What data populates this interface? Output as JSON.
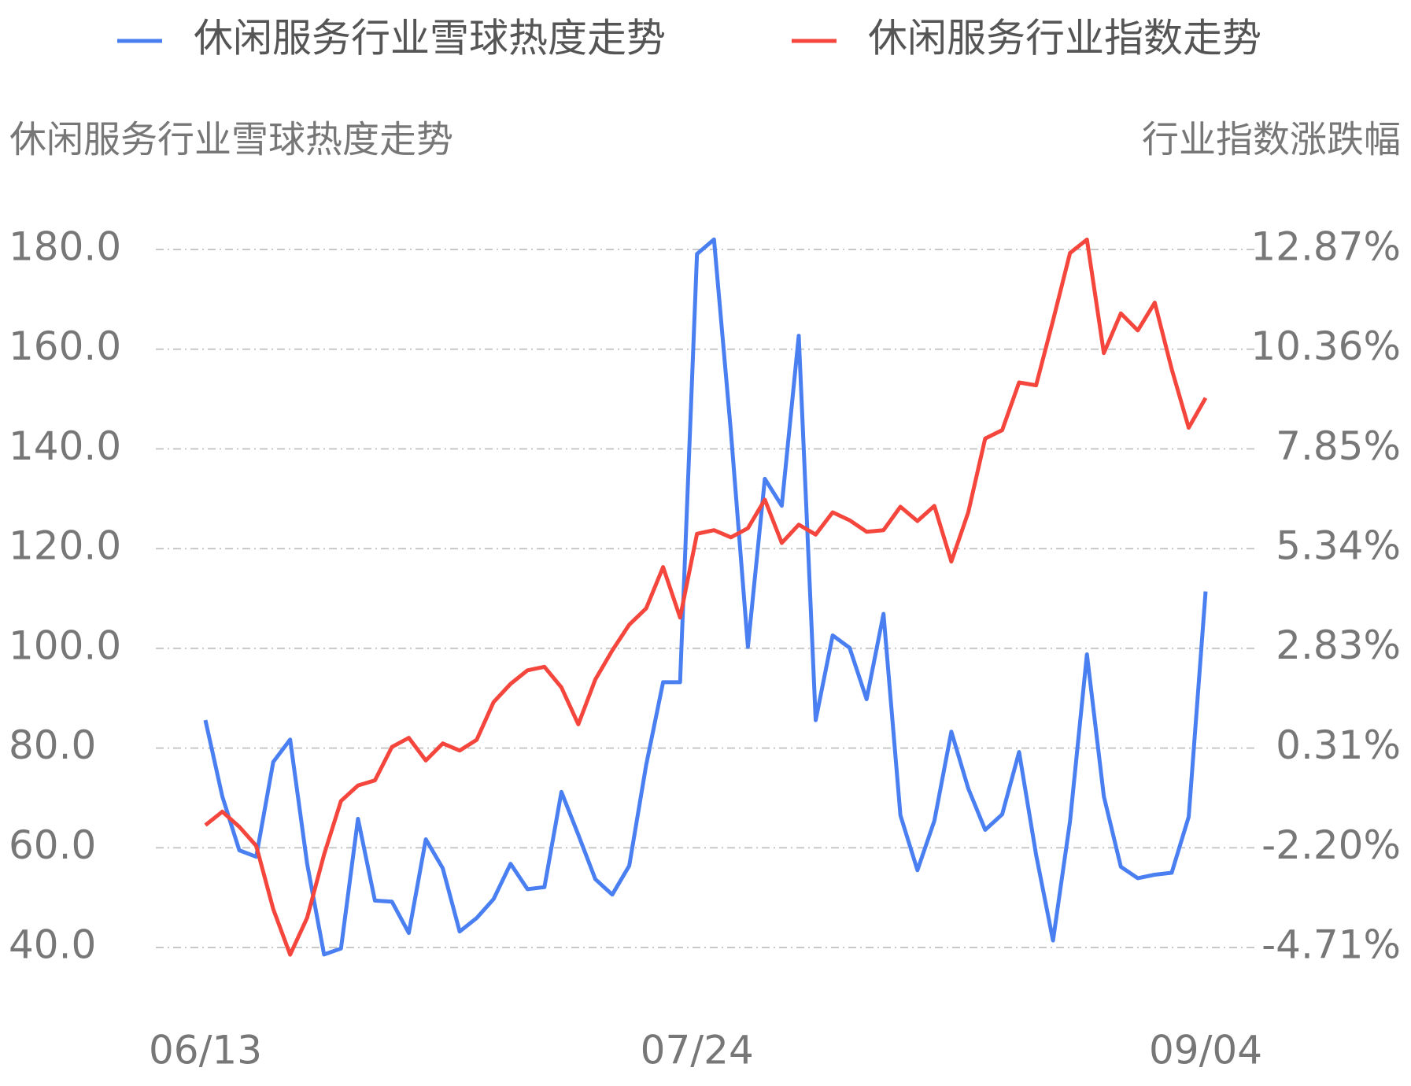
{
  "chart_data": {
    "type": "line",
    "ylabel": "休闲服务行业雪球热度走势",
    "y2label": "行业指数涨跌幅",
    "categories": [
      "06/13",
      null,
      null,
      null,
      null,
      null,
      null,
      null,
      null,
      null,
      null,
      null,
      null,
      null,
      null,
      null,
      null,
      null,
      null,
      null,
      null,
      null,
      null,
      null,
      null,
      null,
      null,
      null,
      null,
      "07/24",
      null,
      null,
      null,
      null,
      null,
      null,
      null,
      null,
      null,
      null,
      null,
      null,
      null,
      null,
      null,
      null,
      null,
      null,
      null,
      null,
      null,
      null,
      null,
      null,
      null,
      null,
      null,
      null,
      null,
      "09/04"
    ],
    "series": [
      {
        "name": "休闲服务行业雪球热度走势",
        "color": "#4a7ff2",
        "values": [
          85.6,
          70.3,
          59.5,
          58.2,
          77.2,
          81.7,
          56.8,
          38.6,
          39.8,
          65.8,
          49.4,
          49.2,
          42.9,
          61.7,
          55.9,
          43.2,
          45.9,
          49.7,
          56.8,
          51.7,
          52.1,
          71.2,
          62.6,
          53.7,
          50.6,
          56.4,
          76.6,
          93.2,
          93.2,
          179.1,
          182.0,
          143.4,
          100.3,
          134.0,
          128.6,
          162.7,
          85.6,
          102.6,
          100.1,
          89.8,
          106.9,
          66.5,
          55.5,
          65.4,
          83.3,
          71.9,
          63.6,
          66.7,
          79.2,
          58.6,
          41.4,
          65.3,
          98.8,
          70.3,
          56.2,
          53.9,
          54.6,
          55.0,
          66.2,
          111.4
        ]
      },
      {
        "name": "休闲服务行业指数走势",
        "color": "#f4463c",
        "axis": "y2",
        "values": [
          -1.63,
          -1.29,
          -1.67,
          -2.15,
          -3.74,
          -4.89,
          -3.96,
          -2.37,
          -1.02,
          -0.63,
          -0.5,
          0.34,
          0.57,
          0.0,
          0.43,
          0.25,
          0.52,
          1.47,
          1.93,
          2.27,
          2.36,
          1.84,
          0.91,
          2.04,
          2.77,
          3.42,
          3.83,
          4.87,
          3.6,
          5.71,
          5.8,
          5.62,
          5.85,
          6.57,
          5.48,
          5.94,
          5.69,
          6.25,
          6.05,
          5.76,
          5.8,
          6.39,
          6.03,
          6.41,
          5.01,
          6.25,
          8.11,
          8.32,
          9.52,
          9.45,
          11.08,
          12.78,
          13.12,
          10.26,
          11.26,
          10.83,
          11.53,
          9.86,
          8.38,
          9.13
        ]
      }
    ],
    "ylim": [
      40,
      180
    ],
    "yticks": [
      {
        "value": 40,
        "label": "40.0"
      },
      {
        "value": 60,
        "label": "60.0"
      },
      {
        "value": 80,
        "label": "80.0"
      },
      {
        "value": 100,
        "label": "100.0"
      },
      {
        "value": 120,
        "label": "120.0"
      },
      {
        "value": 140,
        "label": "140.0"
      },
      {
        "value": 160,
        "label": "160.0"
      },
      {
        "value": 180,
        "label": "180.0"
      }
    ],
    "y2lim": [
      -4.71,
      12.87
    ],
    "y2ticks": [
      {
        "value": -4.71,
        "label": "-4.71%"
      },
      {
        "value": -2.2,
        "label": "-2.20%"
      },
      {
        "value": 0.31,
        "label": "0.31%"
      },
      {
        "value": 2.83,
        "label": "2.83%"
      },
      {
        "value": 5.34,
        "label": "5.34%"
      },
      {
        "value": 7.85,
        "label": "7.85%"
      },
      {
        "value": 10.36,
        "label": "10.36%"
      },
      {
        "value": 12.87,
        "label": "12.87%"
      }
    ],
    "grid": true,
    "legend": "top"
  }
}
